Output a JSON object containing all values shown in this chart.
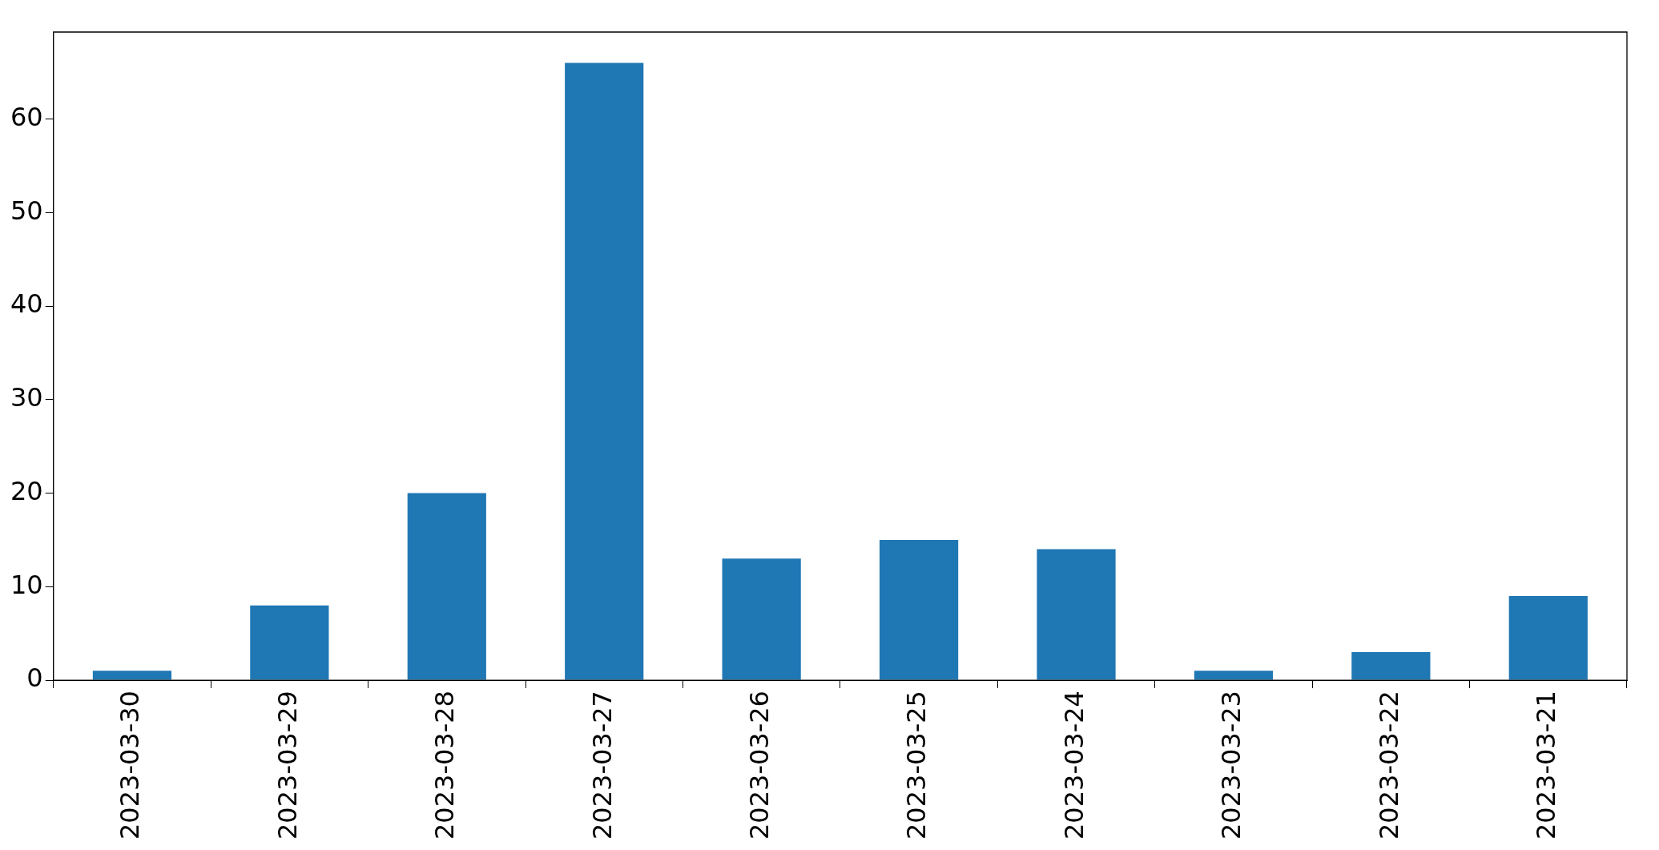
{
  "chart_data": {
    "type": "bar",
    "categories": [
      "2023-03-30",
      "2023-03-29",
      "2023-03-28",
      "2023-03-27",
      "2023-03-26",
      "2023-03-25",
      "2023-03-24",
      "2023-03-23",
      "2023-03-22",
      "2023-03-21"
    ],
    "values": [
      1,
      8,
      20,
      66,
      13,
      15,
      14,
      1,
      3,
      9
    ],
    "color": "#1f77b4",
    "ylim": [
      0,
      69.3
    ],
    "yticks": [
      0,
      10,
      20,
      30,
      40,
      50,
      60
    ],
    "legend": false
  }
}
